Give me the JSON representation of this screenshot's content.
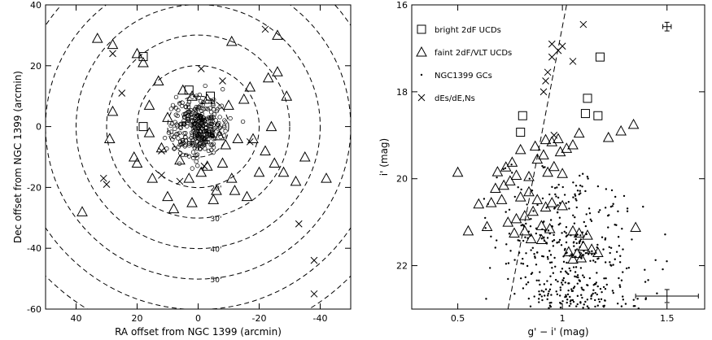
{
  "chart_data": [
    {
      "type": "scatter",
      "xlabel": "RA offset from NGC 1399 (arcmin)",
      "ylabel": "Dec offset from NGC 1399 (arcmin)",
      "xlim": [
        50,
        -50
      ],
      "ylim": [
        -60,
        40
      ],
      "xticks": [
        40,
        20,
        0,
        -20,
        -40
      ],
      "yticks": [
        -60,
        -40,
        -20,
        0,
        20,
        40
      ],
      "grid": false,
      "rings": {
        "radii": [
          10,
          20,
          30,
          40,
          50,
          60,
          70
        ],
        "labels": [
          {
            "text": "20'",
            "r": 20
          },
          {
            "text": "30'",
            "r": 30
          },
          {
            "text": "40'",
            "r": 40
          },
          {
            "text": "50'",
            "r": 50
          }
        ]
      },
      "series": [
        {
          "name": "bright 2dF UCDs",
          "marker": "square",
          "points": [
            [
              18,
              23
            ],
            [
              3,
              12
            ],
            [
              -4,
              10
            ],
            [
              18,
              0
            ]
          ]
        },
        {
          "name": "faint 2dF/VLT UCDs",
          "marker": "triangle",
          "points": [
            [
              33,
              29
            ],
            [
              28,
              27
            ],
            [
              20,
              24
            ],
            [
              18,
              21
            ],
            [
              -11,
              28
            ],
            [
              -26,
              30
            ],
            [
              13,
              15
            ],
            [
              -26,
              18
            ],
            [
              28,
              5
            ],
            [
              29,
              -4
            ],
            [
              16,
              7
            ],
            [
              5,
              12
            ],
            [
              2,
              10
            ],
            [
              -3,
              9
            ],
            [
              -10,
              7
            ],
            [
              -15,
              9
            ],
            [
              -22,
              -8
            ],
            [
              -24,
              0
            ],
            [
              -18,
              -4
            ],
            [
              21,
              -10
            ],
            [
              12,
              -7
            ],
            [
              -7,
              -3
            ],
            [
              -13,
              -4
            ],
            [
              15,
              -17
            ],
            [
              3,
              -17
            ],
            [
              -3,
              -13
            ],
            [
              -8,
              -12
            ],
            [
              -20,
              -15
            ],
            [
              -25,
              -12
            ],
            [
              -28,
              -15
            ],
            [
              -32,
              -18
            ],
            [
              -12,
              -21
            ],
            [
              10,
              -23
            ],
            [
              2,
              -25
            ],
            [
              -16,
              -23
            ],
            [
              6,
              -11
            ],
            [
              -6,
              -21
            ],
            [
              -35,
              -10
            ],
            [
              -42,
              -17
            ],
            [
              38,
              -28
            ],
            [
              -1,
              -15
            ],
            [
              -9,
              -6
            ],
            [
              8,
              -27
            ],
            [
              20,
              -12
            ],
            [
              -29,
              10
            ],
            [
              -23,
              16
            ],
            [
              10,
              3
            ],
            [
              -1,
              -5
            ],
            [
              -17,
              13
            ],
            [
              16,
              -2
            ],
            [
              -5,
              -24
            ],
            [
              -11,
              -17
            ]
          ]
        },
        {
          "name": "NGC1399 GCs",
          "marker": "small-circle",
          "generator": "cluster",
          "count": 320,
          "center": [
            0,
            0
          ],
          "sigma": [
            4.2,
            4.5
          ]
        },
        {
          "name": "dEs/dE,Ns",
          "marker": "cross",
          "points": [
            [
              28,
              24
            ],
            [
              -22,
              32
            ],
            [
              -1,
              19
            ],
            [
              25,
              11
            ],
            [
              -8,
              15
            ],
            [
              0,
              3
            ],
            [
              12,
              -16
            ],
            [
              31,
              -17
            ],
            [
              30,
              -19
            ],
            [
              -2,
              -13
            ],
            [
              6,
              -18
            ],
            [
              -17,
              -5
            ],
            [
              -33,
              -32
            ],
            [
              -38,
              -44
            ],
            [
              -38,
              -55
            ],
            [
              12,
              -8
            ]
          ]
        }
      ]
    },
    {
      "type": "scatter",
      "xlabel": "g' − i' (mag)",
      "ylabel": "i' (mag)",
      "xlim": [
        0.28,
        1.68
      ],
      "ylim": [
        23.0,
        16.0
      ],
      "xticks": [
        0.5,
        1.0,
        1.5
      ],
      "yticks": [
        16,
        18,
        20,
        22
      ],
      "grid": false,
      "legend": {
        "placement": "top-left",
        "entries": [
          {
            "label": "bright 2dF UCDs",
            "marker": "square"
          },
          {
            "label": "faint 2dF/VLT UCDs",
            "marker": "triangle"
          },
          {
            "label": "NGC1399 GCs",
            "marker": "dot"
          },
          {
            "label": "dEs/dE,Ns",
            "marker": "cross"
          }
        ]
      },
      "dashed_line": {
        "points": [
          [
            0.74,
            23.0
          ],
          [
            1.02,
            16.0
          ]
        ]
      },
      "error_bars": [
        {
          "x": 1.5,
          "y": 16.5,
          "dx": 0.02,
          "dy": 0.1
        },
        {
          "x": 1.5,
          "y": 22.7,
          "dx": 0.15,
          "dy": 0.15
        }
      ],
      "series": [
        {
          "name": "bright 2dF UCDs",
          "marker": "square",
          "points": [
            [
              1.18,
              17.2
            ],
            [
              1.12,
              18.15
            ],
            [
              1.11,
              18.5
            ],
            [
              1.17,
              18.55
            ],
            [
              0.81,
              18.55
            ],
            [
              0.8,
              18.93
            ]
          ]
        },
        {
          "name": "faint 2dF/VLT UCDs",
          "marker": "triangle",
          "points": [
            [
              1.34,
              18.75
            ],
            [
              1.28,
              18.9
            ],
            [
              1.22,
              19.05
            ],
            [
              1.08,
              18.95
            ],
            [
              0.98,
              19.08
            ],
            [
              0.95,
              19.15
            ],
            [
              0.92,
              19.1
            ],
            [
              0.87,
              19.25
            ],
            [
              0.8,
              19.33
            ],
            [
              1.05,
              19.22
            ],
            [
              1.02,
              19.3
            ],
            [
              0.99,
              19.38
            ],
            [
              0.91,
              19.45
            ],
            [
              0.88,
              19.55
            ],
            [
              0.76,
              19.62
            ],
            [
              0.73,
              19.73
            ],
            [
              0.69,
              19.84
            ],
            [
              0.5,
              19.85
            ],
            [
              0.96,
              19.72
            ],
            [
              0.93,
              19.85
            ],
            [
              1.0,
              19.88
            ],
            [
              0.84,
              19.95
            ],
            [
              0.78,
              19.92
            ],
            [
              0.75,
              20.05
            ],
            [
              0.72,
              20.15
            ],
            [
              0.68,
              20.22
            ],
            [
              0.84,
              20.3
            ],
            [
              0.8,
              20.42
            ],
            [
              0.88,
              20.48
            ],
            [
              0.71,
              20.48
            ],
            [
              0.66,
              20.55
            ],
            [
              0.6,
              20.58
            ],
            [
              0.95,
              20.55
            ],
            [
              0.92,
              20.65
            ],
            [
              1.0,
              20.62
            ],
            [
              0.86,
              20.75
            ],
            [
              0.82,
              20.85
            ],
            [
              0.78,
              20.92
            ],
            [
              0.74,
              21.0
            ],
            [
              0.64,
              21.1
            ],
            [
              0.55,
              21.2
            ],
            [
              0.9,
              21.08
            ],
            [
              0.94,
              21.15
            ],
            [
              1.05,
              21.2
            ],
            [
              1.08,
              21.25
            ],
            [
              1.12,
              21.3
            ],
            [
              0.85,
              21.38
            ],
            [
              0.9,
              21.4
            ],
            [
              1.1,
              21.55
            ],
            [
              1.14,
              21.62
            ],
            [
              1.03,
              21.68
            ],
            [
              1.07,
              21.72
            ],
            [
              1.09,
              21.82
            ],
            [
              1.05,
              21.85
            ],
            [
              0.82,
              21.2
            ],
            [
              0.77,
              21.25
            ],
            [
              1.17,
              21.7
            ],
            [
              1.35,
              21.12
            ]
          ]
        },
        {
          "name": "NGC1399 GCs",
          "marker": "dot",
          "generator": "cloud",
          "count": 430,
          "x_range": [
            0.6,
            1.5
          ],
          "y_range": [
            19.5,
            23.0
          ]
        },
        {
          "name": "dEs/dE,Ns",
          "marker": "cross",
          "points": [
            [
              1.1,
              16.45
            ],
            [
              0.95,
              16.9
            ],
            [
              1.0,
              16.95
            ],
            [
              0.98,
              17.05
            ],
            [
              1.05,
              17.3
            ],
            [
              0.93,
              17.55
            ],
            [
              0.95,
              17.2
            ],
            [
              0.92,
              17.75
            ],
            [
              0.91,
              18.0
            ],
            [
              0.96,
              19.0
            ]
          ]
        }
      ]
    }
  ]
}
